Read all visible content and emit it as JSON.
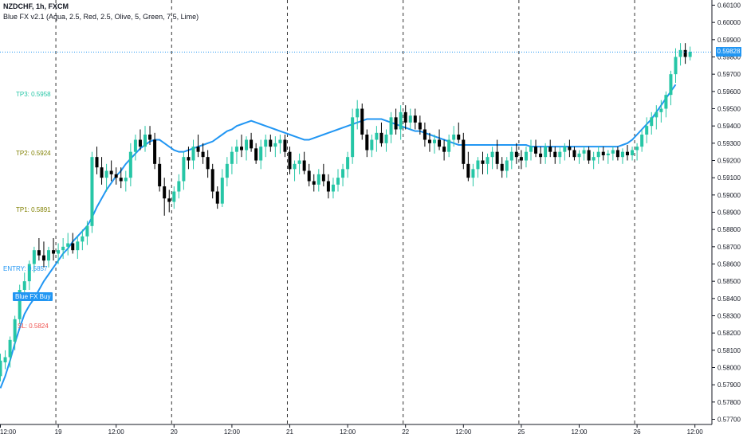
{
  "header": {
    "symbol": "NZDCHF, 1h, FXCM",
    "indicator": "Blue FX v2.1 (Aqua, 2.5, Red, 2.5, Olive, 5, Green, 7.5, Lime)"
  },
  "levels": [
    {
      "label": "TP3: 0.5958",
      "value": 0.5958,
      "color": "#26c6a6"
    },
    {
      "label": "TP2: 0.5924",
      "value": 0.5924,
      "color": "#808000"
    },
    {
      "label": "TP1: 0.5891",
      "value": 0.5891,
      "color": "#808000"
    },
    {
      "label": "ENTRY: 0.5857",
      "value": 0.5857,
      "color": "#2196f3"
    },
    {
      "label": "SL: 0.5824",
      "value": 0.5824,
      "color": "#ef5350"
    }
  ],
  "signal": {
    "label": "Blue FX Buy"
  },
  "last_price": {
    "label": "0.59828",
    "value": 0.59828
  },
  "colors": {
    "bull": "#26c6a6",
    "bear": "#000000",
    "ma": "#2196f3",
    "axis_text": "#131722"
  },
  "chart_data": {
    "type": "candlestick",
    "title": "NZDCHF, 1h, FXCM",
    "ylim": [
      0.5767,
      0.6013
    ],
    "y_ticks": [
      "0.60100",
      "0.60000",
      "0.59900",
      "0.59800",
      "0.59700",
      "0.59600",
      "0.59500",
      "0.59400",
      "0.59300",
      "0.59200",
      "0.59100",
      "0.59000",
      "0.58900",
      "0.58800",
      "0.58700",
      "0.58600",
      "0.58500",
      "0.58400",
      "0.58300",
      "0.58200",
      "0.58100",
      "0.58000",
      "0.57900",
      "0.57800",
      "0.57700"
    ],
    "x_labels": [
      "12:00",
      "19",
      "12:00",
      "20",
      "12:00",
      "21",
      "12:00",
      "22",
      "12:00",
      "25",
      "12:00",
      "26",
      "12:00"
    ],
    "x_label_bars": [
      0,
      12,
      24,
      36,
      48,
      60,
      72,
      84,
      96,
      108,
      120,
      132,
      144
    ],
    "day_separator_bars": [
      11,
      35,
      59,
      83,
      107,
      131
    ],
    "series": [
      {
        "name": "Blue FX v2.1 MA",
        "values": [
          0.5788,
          0.5795,
          0.5804,
          0.5814,
          0.5823,
          0.5831,
          0.5836,
          0.584,
          0.5845,
          0.585,
          0.5854,
          0.5858,
          0.5862,
          0.5866,
          0.5869,
          0.5873,
          0.5876,
          0.5879,
          0.5882,
          0.5887,
          0.5893,
          0.5898,
          0.5903,
          0.5907,
          0.5911,
          0.5914,
          0.5918,
          0.5921,
          0.5924,
          0.5927,
          0.5929,
          0.5931,
          0.5932,
          0.5932,
          0.593,
          0.5928,
          0.5926,
          0.5925,
          0.5925,
          0.5926,
          0.5927,
          0.5928,
          0.5929,
          0.593,
          0.5931,
          0.5933,
          0.5935,
          0.5937,
          0.5938,
          0.594,
          0.5941,
          0.5942,
          0.5943,
          0.5942,
          0.5941,
          0.594,
          0.5939,
          0.5938,
          0.5937,
          0.5936,
          0.5935,
          0.5934,
          0.5933,
          0.5932,
          0.5932,
          0.5933,
          0.5934,
          0.5935,
          0.5936,
          0.5937,
          0.5938,
          0.5939,
          0.594,
          0.5941,
          0.5942,
          0.5943,
          0.5944,
          0.5944,
          0.5944,
          0.5944,
          0.5943,
          0.5942,
          0.5941,
          0.594,
          0.5939,
          0.5938,
          0.5937,
          0.5937,
          0.5936,
          0.5935,
          0.5934,
          0.5933,
          0.5932,
          0.5931,
          0.593,
          0.5929,
          0.5929,
          0.5929,
          0.5929,
          0.5929,
          0.5929,
          0.5929,
          0.5929,
          0.5929,
          0.5929,
          0.5929,
          0.5929,
          0.5929,
          0.5929,
          0.5929,
          0.5928,
          0.5928,
          0.5928,
          0.5928,
          0.5928,
          0.5928,
          0.5928,
          0.5928,
          0.5928,
          0.5928,
          0.5928,
          0.5928,
          0.5928,
          0.5928,
          0.5928,
          0.5928,
          0.5928,
          0.5928,
          0.5928,
          0.5929,
          0.593,
          0.5932,
          0.5935,
          0.5938,
          0.5941,
          0.5944,
          0.5948,
          0.5952,
          0.5956,
          0.596,
          0.5964
        ]
      },
      {
        "name": "candles",
        "ohlc": [
          [
            0.5795,
            0.5808,
            0.5792,
            0.5804
          ],
          [
            0.5803,
            0.581,
            0.5799,
            0.5806
          ],
          [
            0.5806,
            0.5818,
            0.58,
            0.5816
          ],
          [
            0.5815,
            0.583,
            0.581,
            0.5828
          ],
          [
            0.5828,
            0.5848,
            0.5825,
            0.5845
          ],
          [
            0.5845,
            0.5855,
            0.584,
            0.585
          ],
          [
            0.585,
            0.5862,
            0.5845,
            0.586
          ],
          [
            0.586,
            0.587,
            0.5855,
            0.5868
          ],
          [
            0.5868,
            0.5875,
            0.5862,
            0.5865
          ],
          [
            0.5865,
            0.5873,
            0.5858,
            0.5862
          ],
          [
            0.5862,
            0.587,
            0.5858,
            0.5868
          ],
          [
            0.5868,
            0.5875,
            0.5862,
            0.5866
          ],
          [
            0.5866,
            0.5872,
            0.586,
            0.5868
          ],
          [
            0.5868,
            0.5875,
            0.5863,
            0.587
          ],
          [
            0.587,
            0.5878,
            0.5865,
            0.5872
          ],
          [
            0.5872,
            0.5878,
            0.5866,
            0.5868
          ],
          [
            0.5868,
            0.5876,
            0.5863,
            0.5873
          ],
          [
            0.5873,
            0.588,
            0.5868,
            0.5876
          ],
          [
            0.5876,
            0.5885,
            0.5871,
            0.5882
          ],
          [
            0.5882,
            0.5925,
            0.5878,
            0.5922
          ],
          [
            0.5922,
            0.5928,
            0.5912,
            0.5916
          ],
          [
            0.5916,
            0.5922,
            0.5906,
            0.591
          ],
          [
            0.591,
            0.5918,
            0.5902,
            0.5914
          ],
          [
            0.5914,
            0.592,
            0.5908,
            0.5912
          ],
          [
            0.5912,
            0.5916,
            0.5906,
            0.591
          ],
          [
            0.591,
            0.5916,
            0.5904,
            0.5908
          ],
          [
            0.5908,
            0.5914,
            0.5902,
            0.591
          ],
          [
            0.591,
            0.593,
            0.5905,
            0.5925
          ],
          [
            0.5925,
            0.5935,
            0.592,
            0.5932
          ],
          [
            0.5932,
            0.5938,
            0.5926,
            0.5928
          ],
          [
            0.5928,
            0.594,
            0.5925,
            0.5935
          ],
          [
            0.5935,
            0.594,
            0.5929,
            0.5932
          ],
          [
            0.5932,
            0.5936,
            0.5915,
            0.5918
          ],
          [
            0.5918,
            0.5922,
            0.5902,
            0.5905
          ],
          [
            0.5905,
            0.591,
            0.5888,
            0.5898
          ],
          [
            0.5898,
            0.5903,
            0.589,
            0.5896
          ],
          [
            0.5896,
            0.5905,
            0.5892,
            0.5902
          ],
          [
            0.5902,
            0.5912,
            0.5898,
            0.5908
          ],
          [
            0.5908,
            0.5925,
            0.5903,
            0.5922
          ],
          [
            0.5922,
            0.5928,
            0.5915,
            0.592
          ],
          [
            0.592,
            0.5932,
            0.5915,
            0.5928
          ],
          [
            0.5928,
            0.5935,
            0.5922,
            0.5925
          ],
          [
            0.5925,
            0.593,
            0.5918,
            0.5922
          ],
          [
            0.5922,
            0.5926,
            0.591,
            0.5915
          ],
          [
            0.5915,
            0.5918,
            0.5898,
            0.5902
          ],
          [
            0.5902,
            0.5905,
            0.5892,
            0.5895
          ],
          [
            0.5895,
            0.5915,
            0.5893,
            0.591
          ],
          [
            0.591,
            0.5922,
            0.5905,
            0.5918
          ],
          [
            0.5918,
            0.5928,
            0.5912,
            0.5925
          ],
          [
            0.5925,
            0.5932,
            0.5918,
            0.5928
          ],
          [
            0.5928,
            0.5935,
            0.5922,
            0.5926
          ],
          [
            0.5926,
            0.5934,
            0.592,
            0.5932
          ],
          [
            0.5932,
            0.5936,
            0.5925,
            0.5927
          ],
          [
            0.5927,
            0.593,
            0.5918,
            0.592
          ],
          [
            0.592,
            0.5932,
            0.5915,
            0.5928
          ],
          [
            0.5928,
            0.5935,
            0.5922,
            0.5932
          ],
          [
            0.5932,
            0.5935,
            0.5925,
            0.5928
          ],
          [
            0.5928,
            0.5934,
            0.5922,
            0.593
          ],
          [
            0.593,
            0.5935,
            0.5924,
            0.5932
          ],
          [
            0.5932,
            0.5935,
            0.5922,
            0.5925
          ],
          [
            0.5925,
            0.5928,
            0.5912,
            0.5915
          ],
          [
            0.5915,
            0.592,
            0.5908,
            0.5918
          ],
          [
            0.5918,
            0.5924,
            0.5912,
            0.592
          ],
          [
            0.592,
            0.5925,
            0.5912,
            0.5914
          ],
          [
            0.5914,
            0.5918,
            0.5905,
            0.5908
          ],
          [
            0.5908,
            0.5912,
            0.5902,
            0.5906
          ],
          [
            0.5906,
            0.5915,
            0.5902,
            0.5912
          ],
          [
            0.5912,
            0.5918,
            0.5905,
            0.5908
          ],
          [
            0.5908,
            0.5912,
            0.5898,
            0.5902
          ],
          [
            0.5902,
            0.591,
            0.5898,
            0.5906
          ],
          [
            0.5906,
            0.5915,
            0.5902,
            0.591
          ],
          [
            0.591,
            0.5918,
            0.5905,
            0.5915
          ],
          [
            0.5915,
            0.5925,
            0.591,
            0.5922
          ],
          [
            0.5922,
            0.595,
            0.5918,
            0.5945
          ],
          [
            0.5945,
            0.5955,
            0.5938,
            0.595
          ],
          [
            0.595,
            0.5953,
            0.5932,
            0.5935
          ],
          [
            0.5935,
            0.5938,
            0.5922,
            0.5926
          ],
          [
            0.5926,
            0.5935,
            0.5922,
            0.5932
          ],
          [
            0.5932,
            0.594,
            0.5925,
            0.5936
          ],
          [
            0.5936,
            0.5942,
            0.5928,
            0.593
          ],
          [
            0.593,
            0.5938,
            0.5925,
            0.5935
          ],
          [
            0.5935,
            0.5948,
            0.593,
            0.5945
          ],
          [
            0.5945,
            0.595,
            0.5935,
            0.5938
          ],
          [
            0.5938,
            0.5952,
            0.5932,
            0.5948
          ],
          [
            0.5948,
            0.5952,
            0.5938,
            0.5942
          ],
          [
            0.5942,
            0.595,
            0.5938,
            0.5946
          ],
          [
            0.5946,
            0.595,
            0.5938,
            0.5942
          ],
          [
            0.5942,
            0.5946,
            0.5935,
            0.5938
          ],
          [
            0.5938,
            0.5942,
            0.5928,
            0.5932
          ],
          [
            0.5932,
            0.5936,
            0.5925,
            0.593
          ],
          [
            0.593,
            0.5935,
            0.5924,
            0.5932
          ],
          [
            0.5932,
            0.5938,
            0.5926,
            0.5928
          ],
          [
            0.5928,
            0.5932,
            0.592,
            0.5925
          ],
          [
            0.5925,
            0.5935,
            0.5922,
            0.5932
          ],
          [
            0.5932,
            0.594,
            0.5928,
            0.5935
          ],
          [
            0.5935,
            0.5942,
            0.593,
            0.5932
          ],
          [
            0.5932,
            0.5936,
            0.5915,
            0.5918
          ],
          [
            0.5918,
            0.5925,
            0.5908,
            0.591
          ],
          [
            0.591,
            0.5918,
            0.5905,
            0.5915
          ],
          [
            0.5915,
            0.5922,
            0.591,
            0.592
          ],
          [
            0.592,
            0.5925,
            0.5912,
            0.5918
          ],
          [
            0.5918,
            0.5924,
            0.5912,
            0.5922
          ],
          [
            0.5922,
            0.5928,
            0.5915,
            0.5925
          ],
          [
            0.5925,
            0.5932,
            0.5915,
            0.5918
          ],
          [
            0.5918,
            0.5922,
            0.591,
            0.5914
          ],
          [
            0.5914,
            0.5922,
            0.591,
            0.592
          ],
          [
            0.592,
            0.5928,
            0.5915,
            0.5925
          ],
          [
            0.5925,
            0.593,
            0.5918,
            0.5922
          ],
          [
            0.5922,
            0.5926,
            0.5915,
            0.592
          ],
          [
            0.592,
            0.5928,
            0.5916,
            0.5925
          ],
          [
            0.5925,
            0.5932,
            0.592,
            0.5928
          ],
          [
            0.5928,
            0.5932,
            0.5922,
            0.5924
          ],
          [
            0.5924,
            0.5928,
            0.5918,
            0.5922
          ],
          [
            0.5922,
            0.593,
            0.5918,
            0.5928
          ],
          [
            0.5928,
            0.5932,
            0.5922,
            0.5925
          ],
          [
            0.5925,
            0.5928,
            0.5918,
            0.5922
          ],
          [
            0.5922,
            0.5928,
            0.5918,
            0.5925
          ],
          [
            0.5925,
            0.593,
            0.592,
            0.5928
          ],
          [
            0.5928,
            0.5932,
            0.5922,
            0.5926
          ],
          [
            0.5926,
            0.5928,
            0.592,
            0.5922
          ],
          [
            0.5922,
            0.5926,
            0.5918,
            0.5924
          ],
          [
            0.5924,
            0.5928,
            0.592,
            0.5926
          ],
          [
            0.5926,
            0.5928,
            0.5918,
            0.592
          ],
          [
            0.592,
            0.5925,
            0.5915,
            0.5922
          ],
          [
            0.5922,
            0.5928,
            0.5918,
            0.5925
          ],
          [
            0.5925,
            0.5928,
            0.592,
            0.5923
          ],
          [
            0.5923,
            0.5926,
            0.5918,
            0.5924
          ],
          [
            0.5924,
            0.5928,
            0.592,
            0.5926
          ],
          [
            0.5926,
            0.5928,
            0.592,
            0.5922
          ],
          [
            0.5922,
            0.5927,
            0.5918,
            0.5925
          ],
          [
            0.5925,
            0.5929,
            0.592,
            0.5923
          ],
          [
            0.5923,
            0.5928,
            0.592,
            0.5926
          ],
          [
            0.5926,
            0.593,
            0.592,
            0.5928
          ],
          [
            0.5928,
            0.5938,
            0.5925,
            0.5935
          ],
          [
            0.5935,
            0.5945,
            0.593,
            0.594
          ],
          [
            0.594,
            0.5948,
            0.5935,
            0.5945
          ],
          [
            0.5945,
            0.5952,
            0.5938,
            0.5948
          ],
          [
            0.5948,
            0.5955,
            0.5942,
            0.595
          ],
          [
            0.595,
            0.596,
            0.5945,
            0.5958
          ],
          [
            0.5958,
            0.5972,
            0.5952,
            0.597
          ],
          [
            0.597,
            0.5985,
            0.5965,
            0.598
          ],
          [
            0.598,
            0.5988,
            0.5975,
            0.5984
          ],
          [
            0.5984,
            0.5988,
            0.5976,
            0.598
          ],
          [
            0.598,
            0.5986,
            0.5978,
            0.5983
          ]
        ]
      }
    ],
    "last_value": 0.59828
  }
}
